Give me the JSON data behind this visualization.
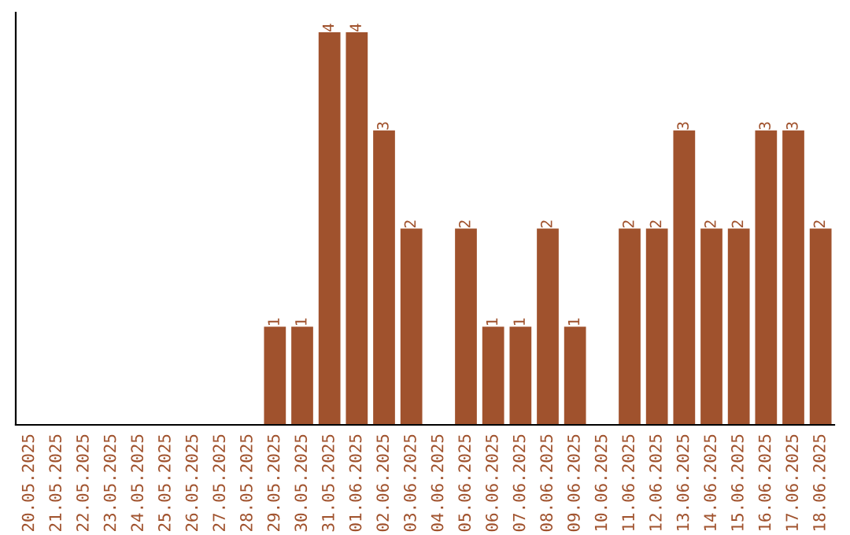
{
  "chart_data": {
    "type": "bar",
    "categories": [
      "20.05.2025",
      "21.05.2025",
      "22.05.2025",
      "23.05.2025",
      "24.05.2025",
      "25.05.2025",
      "26.05.2025",
      "27.05.2025",
      "28.05.2025",
      "29.05.2025",
      "30.05.2025",
      "31.05.2025",
      "01.06.2025",
      "02.06.2025",
      "03.06.2025",
      "04.06.2025",
      "05.06.2025",
      "06.06.2025",
      "07.06.2025",
      "08.06.2025",
      "09.06.2025",
      "10.06.2025",
      "11.06.2025",
      "12.06.2025",
      "13.06.2025",
      "14.06.2025",
      "15.06.2025",
      "16.06.2025",
      "17.06.2025",
      "18.06.2025"
    ],
    "values": [
      0,
      0,
      0,
      0,
      0,
      0,
      0,
      0,
      0,
      1,
      1,
      4,
      4,
      3,
      2,
      0,
      2,
      1,
      1,
      2,
      1,
      0,
      2,
      2,
      3,
      2,
      2,
      3,
      3,
      2
    ],
    "value_labels": [
      null,
      null,
      null,
      null,
      null,
      null,
      null,
      null,
      null,
      "1",
      "1",
      "4",
      "4",
      "3",
      "2",
      null,
      "2",
      "1",
      "1",
      "2",
      "1",
      null,
      "2",
      "2",
      "3",
      "2",
      "2",
      "3",
      "3",
      "2"
    ],
    "color": "#a0522d",
    "ylim": [
      0,
      4.2
    ],
    "tick_labels": "x",
    "grid": false,
    "legend": false
  }
}
